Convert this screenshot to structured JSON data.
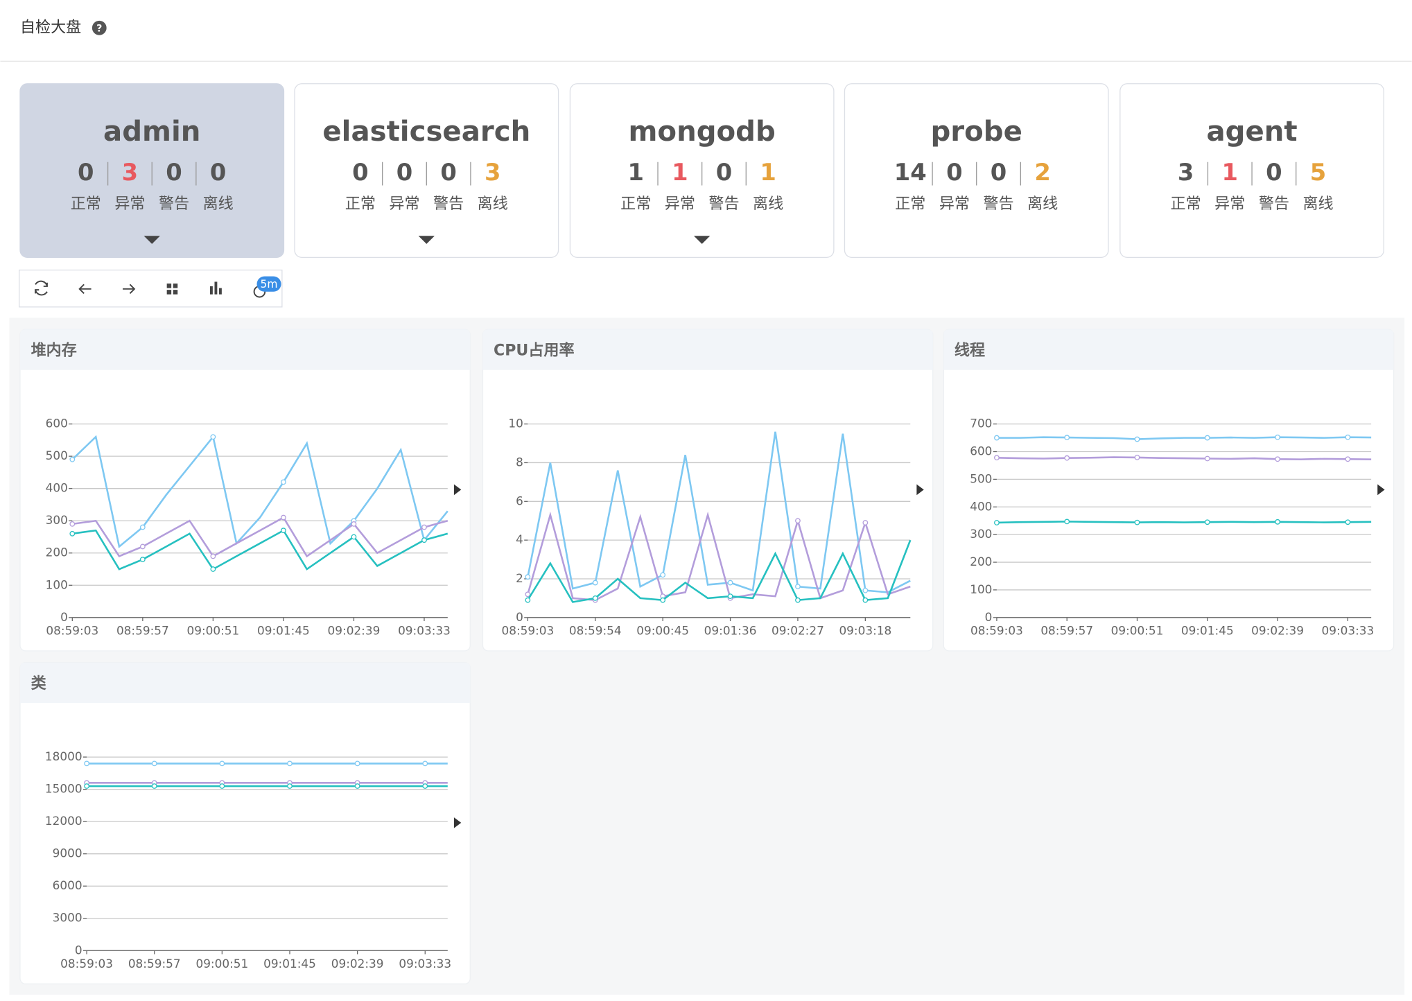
{
  "header": {
    "title": "自检大盘"
  },
  "cards": [
    {
      "name": "admin",
      "counts": [
        0,
        3,
        0,
        0
      ],
      "expandable": true,
      "selected": true
    },
    {
      "name": "elasticsearch",
      "counts": [
        0,
        0,
        0,
        3
      ],
      "expandable": true,
      "selected": false
    },
    {
      "name": "mongodb",
      "counts": [
        1,
        1,
        0,
        1
      ],
      "expandable": true,
      "selected": false
    },
    {
      "name": "probe",
      "counts": [
        14,
        0,
        0,
        2
      ],
      "expandable": false,
      "selected": false
    },
    {
      "name": "agent",
      "counts": [
        3,
        1,
        0,
        5
      ],
      "expandable": false,
      "selected": false
    }
  ],
  "status_labels": [
    "正常",
    "异常",
    "警告",
    "离线"
  ],
  "status_colors": [
    "#555555",
    "#e8595f",
    "#555555",
    "#e6a23c"
  ],
  "toolbar": {
    "refresh_interval": "5m"
  },
  "chart_data": [
    {
      "type": "line",
      "title": "堆内存",
      "grid": true,
      "categories": [
        "08:59:03",
        null,
        null,
        "08:59:57",
        null,
        null,
        "09:00:51",
        null,
        null,
        "09:01:45",
        null,
        null,
        "09:02:39",
        null,
        null,
        "09:03:33",
        null
      ],
      "ylim": [
        0,
        600
      ],
      "yticks": [
        0,
        100,
        200,
        300,
        400,
        500,
        600
      ],
      "series": [
        {
          "color": "#7ec8f2",
          "values": [
            490,
            560,
            220,
            280,
            380,
            470,
            560,
            230,
            310,
            420,
            540,
            230,
            300,
            400,
            520,
            240,
            330
          ]
        },
        {
          "color": "#b39ddb",
          "values": [
            290,
            300,
            190,
            220,
            260,
            300,
            190,
            230,
            270,
            310,
            190,
            240,
            290,
            200,
            240,
            280,
            300
          ]
        },
        {
          "color": "#26c0c0",
          "values": [
            260,
            270,
            150,
            180,
            220,
            260,
            150,
            190,
            230,
            270,
            150,
            200,
            250,
            160,
            200,
            240,
            260
          ]
        }
      ]
    },
    {
      "type": "line",
      "title": "CPU占用率",
      "grid": true,
      "categories": [
        "08:59:03",
        null,
        null,
        "08:59:54",
        null,
        null,
        "09:00:45",
        null,
        null,
        "09:01:36",
        null,
        null,
        "09:02:27",
        null,
        null,
        "09:03:18",
        null,
        null
      ],
      "ylim": [
        0,
        10
      ],
      "yticks": [
        0,
        2,
        4,
        6,
        8,
        10
      ],
      "series": [
        {
          "color": "#7ec8f2",
          "values": [
            2.1,
            8.0,
            1.5,
            1.8,
            7.6,
            1.6,
            2.2,
            8.4,
            1.7,
            1.8,
            1.4,
            9.6,
            1.6,
            1.5,
            9.5,
            1.4,
            1.3,
            1.9
          ]
        },
        {
          "color": "#b39ddb",
          "values": [
            1.2,
            5.3,
            1.0,
            0.9,
            1.5,
            5.2,
            1.1,
            1.3,
            5.3,
            1.0,
            1.2,
            1.1,
            5.0,
            1.0,
            1.4,
            4.9,
            1.2,
            1.6
          ]
        },
        {
          "color": "#26c0c0",
          "values": [
            0.9,
            2.8,
            0.8,
            1.0,
            2.0,
            1.0,
            0.9,
            1.8,
            1.0,
            1.1,
            1.0,
            3.3,
            0.9,
            1.0,
            3.3,
            0.9,
            1.0,
            4.0
          ]
        }
      ]
    },
    {
      "type": "line",
      "title": "线程",
      "grid": true,
      "categories": [
        "08:59:03",
        null,
        null,
        "08:59:57",
        null,
        null,
        "09:00:51",
        null,
        null,
        "09:01:45",
        null,
        null,
        "09:02:39",
        null,
        null,
        "09:03:33",
        null
      ],
      "ylim": [
        0,
        700
      ],
      "yticks": [
        0,
        100,
        200,
        300,
        400,
        500,
        600,
        700
      ],
      "series": [
        {
          "color": "#7ec8f2",
          "values": [
            650,
            650,
            652,
            651,
            650,
            649,
            645,
            648,
            650,
            650,
            651,
            650,
            652,
            651,
            650,
            652,
            651
          ]
        },
        {
          "color": "#b39ddb",
          "values": [
            578,
            576,
            575,
            577,
            578,
            580,
            579,
            577,
            576,
            575,
            574,
            576,
            573,
            572,
            574,
            573,
            572
          ]
        },
        {
          "color": "#26c0c0",
          "values": [
            343,
            345,
            346,
            347,
            346,
            345,
            344,
            345,
            344,
            345,
            346,
            345,
            346,
            345,
            344,
            345,
            346
          ]
        }
      ]
    },
    {
      "type": "line",
      "title": "类",
      "grid": true,
      "categories": [
        "08:59:03",
        null,
        null,
        "08:59:57",
        null,
        null,
        "09:00:51",
        null,
        null,
        "09:01:45",
        null,
        null,
        "09:02:39",
        null,
        null,
        "09:03:33",
        null
      ],
      "ylim": [
        0,
        18000
      ],
      "yticks": [
        0,
        3000,
        6000,
        9000,
        12000,
        15000,
        18000
      ],
      "series": [
        {
          "color": "#7ec8f2",
          "values": [
            17400,
            17400,
            17400,
            17400,
            17400,
            17400,
            17400,
            17400,
            17400,
            17400,
            17400,
            17400,
            17400,
            17400,
            17400,
            17400,
            17400
          ]
        },
        {
          "color": "#b39ddb",
          "values": [
            15600,
            15600,
            15600,
            15600,
            15600,
            15600,
            15600,
            15600,
            15600,
            15600,
            15600,
            15600,
            15600,
            15600,
            15600,
            15600,
            15600
          ]
        },
        {
          "color": "#26c0c0",
          "values": [
            15300,
            15300,
            15300,
            15300,
            15300,
            15300,
            15300,
            15300,
            15300,
            15300,
            15300,
            15300,
            15300,
            15300,
            15300,
            15300,
            15300
          ]
        }
      ]
    }
  ]
}
